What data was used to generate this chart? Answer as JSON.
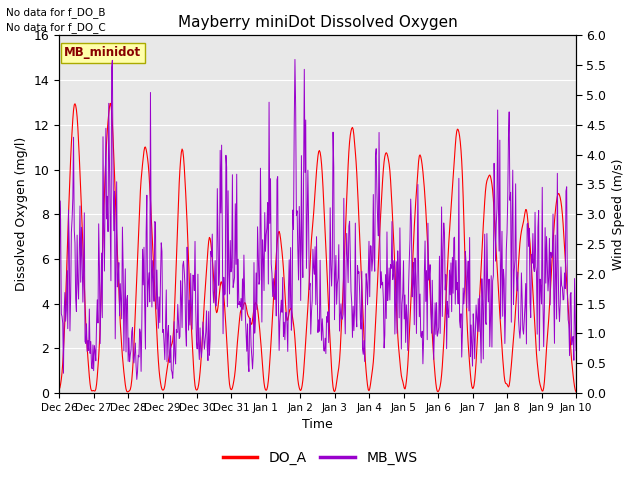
{
  "title": "Mayberry miniDot Dissolved Oxygen",
  "no_data_text_1": "No data for f_DO_B",
  "no_data_text_2": "No data for f_DO_C",
  "site_label": "MB_minidot",
  "xlabel": "Time",
  "ylabel_left": "Dissolved Oxygen (mg/l)",
  "ylabel_right": "Wind Speed (m/s)",
  "ylim_left": [
    0,
    16
  ],
  "ylim_right": [
    0.0,
    6.0
  ],
  "yticks_left": [
    0,
    2,
    4,
    6,
    8,
    10,
    12,
    14,
    16
  ],
  "yticks_right": [
    0.0,
    0.5,
    1.0,
    1.5,
    2.0,
    2.5,
    3.0,
    3.5,
    4.0,
    4.5,
    5.0,
    5.5,
    6.0
  ],
  "xtick_labels": [
    "Dec 26",
    "Dec 27",
    "Dec 28",
    "Dec 29",
    "Dec 30",
    "Dec 31",
    "Jan 1",
    "Jan 2",
    "Jan 3",
    "Jan 4",
    "Jan 5",
    "Jan 6",
    "Jan 7",
    "Jan 8",
    "Jan 9",
    "Jan 10"
  ],
  "color_DO_A": "#ff0000",
  "color_MB_WS": "#9900cc",
  "bg_color": "#e8e8e8",
  "site_box_facecolor": "#ffffaa",
  "site_box_edgecolor": "#aaaa00",
  "figsize": [
    6.4,
    4.8
  ],
  "dpi": 100
}
